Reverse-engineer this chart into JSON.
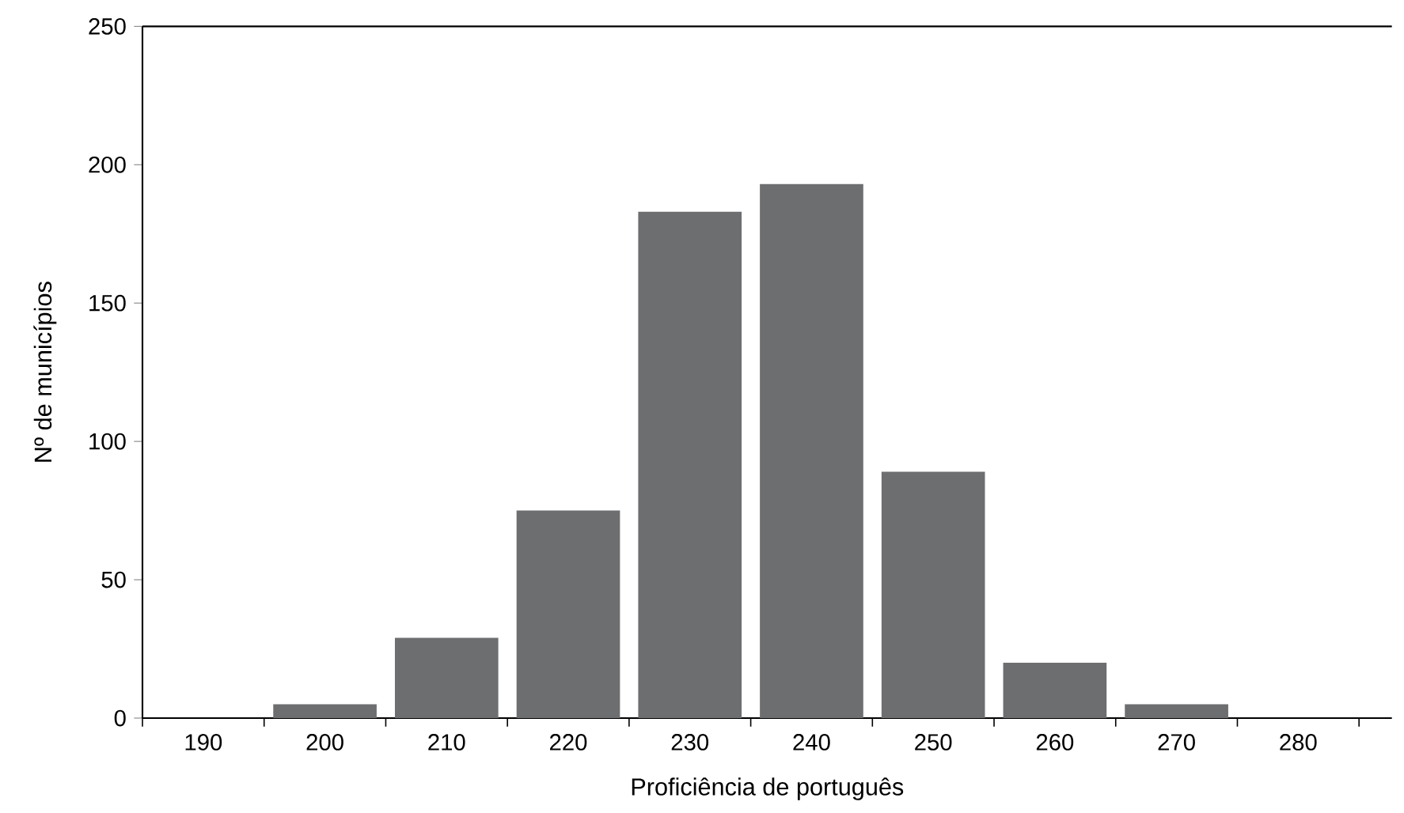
{
  "chart_data": {
    "type": "bar",
    "xlabel": "Proficiência de português",
    "ylabel": "Nº de municípios",
    "categories": [
      "190",
      "200",
      "210",
      "220",
      "230",
      "240",
      "250",
      "260",
      "270",
      "280"
    ],
    "values": [
      0,
      5,
      29,
      75,
      183,
      193,
      89,
      20,
      5,
      0
    ],
    "color": "#6d6e70",
    "ylim": [
      0,
      250
    ],
    "yticks": [
      0,
      50,
      100,
      150,
      200,
      250
    ]
  }
}
